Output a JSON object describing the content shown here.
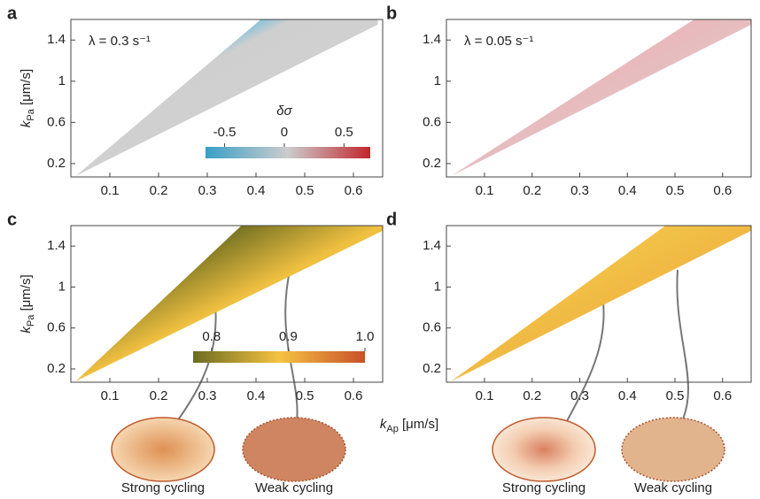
{
  "chart_data": [
    {
      "type": "area",
      "label": "a",
      "annotation": "λ = 0.3 s⁻¹",
      "ylabel": {
        "symbol": "k",
        "sub": "Pa",
        "unit": " [μm/s]"
      },
      "xlim": [
        0.02,
        0.66
      ],
      "ylim": [
        0.07,
        1.6
      ],
      "xticks": [
        0.1,
        0.2,
        0.3,
        0.4,
        0.5,
        0.6
      ],
      "yticks": [
        0.2,
        0.6,
        1.0,
        1.4
      ],
      "region": {
        "x": [
          0.03,
          0.41,
          0.65,
          0.65
        ],
        "y": [
          0.08,
          1.6,
          1.6,
          1.55
        ]
      },
      "colorbar": {
        "title": "δσ",
        "lim": [
          -0.66,
          0.72
        ],
        "ticks": [
          -0.5,
          0,
          0.5
        ],
        "colors": [
          "#3a9fc7",
          "#cccccc",
          "#c1272d"
        ]
      }
    },
    {
      "type": "area",
      "label": "b",
      "annotation": "λ = 0.05 s⁻¹",
      "xlim": [
        0.02,
        0.66
      ],
      "ylim": [
        0.07,
        1.6
      ],
      "xticks": [
        0.1,
        0.2,
        0.3,
        0.4,
        0.5,
        0.6
      ],
      "yticks": [
        0.2,
        0.6,
        1.0,
        1.4
      ],
      "region": {
        "x": [
          0.03,
          0.54,
          0.66,
          0.66
        ],
        "y": [
          0.08,
          1.6,
          1.6,
          1.55
        ]
      }
    },
    {
      "type": "area",
      "label": "c",
      "ylabel": {
        "symbol": "k",
        "sub": "Pa",
        "unit": " [μm/s]"
      },
      "xlabel": {
        "symbol": "k",
        "sub": "Ap",
        "unit": " [μm/s]"
      },
      "xlim": [
        0.02,
        0.66
      ],
      "ylim": [
        0.07,
        1.6
      ],
      "xticks": [
        0.1,
        0.2,
        0.3,
        0.4,
        0.5,
        0.6
      ],
      "yticks": [
        0.2,
        0.6,
        1.0,
        1.4
      ],
      "region": {
        "x": [
          0.03,
          0.37,
          0.66,
          0.66
        ],
        "y": [
          0.08,
          1.6,
          1.6,
          1.55
        ]
      },
      "colorbar": {
        "lim": [
          0.776,
          1.0
        ],
        "ticks": [
          0.8,
          0.9,
          {
            "value": 1.0,
            "label": "1.0"
          }
        ],
        "colors": [
          "#6b6b20",
          "#f5c242",
          "#c8502a"
        ]
      },
      "cells": [
        {
          "label": "Strong cycling"
        },
        {
          "label": "Weak cycling"
        }
      ]
    },
    {
      "type": "area",
      "label": "d",
      "xlim": [
        0.02,
        0.66
      ],
      "ylim": [
        0.07,
        1.6
      ],
      "xticks": [
        0.1,
        0.2,
        0.3,
        0.4,
        0.5,
        0.6
      ],
      "yticks": [
        0.2,
        0.6,
        1.0,
        1.4
      ],
      "region": {
        "x": [
          0.03,
          0.48,
          0.66,
          0.66
        ],
        "y": [
          0.08,
          1.6,
          1.6,
          1.55
        ]
      },
      "cells": [
        {
          "label": "Strong cycling"
        },
        {
          "label": "Weak cycling"
        }
      ]
    }
  ]
}
